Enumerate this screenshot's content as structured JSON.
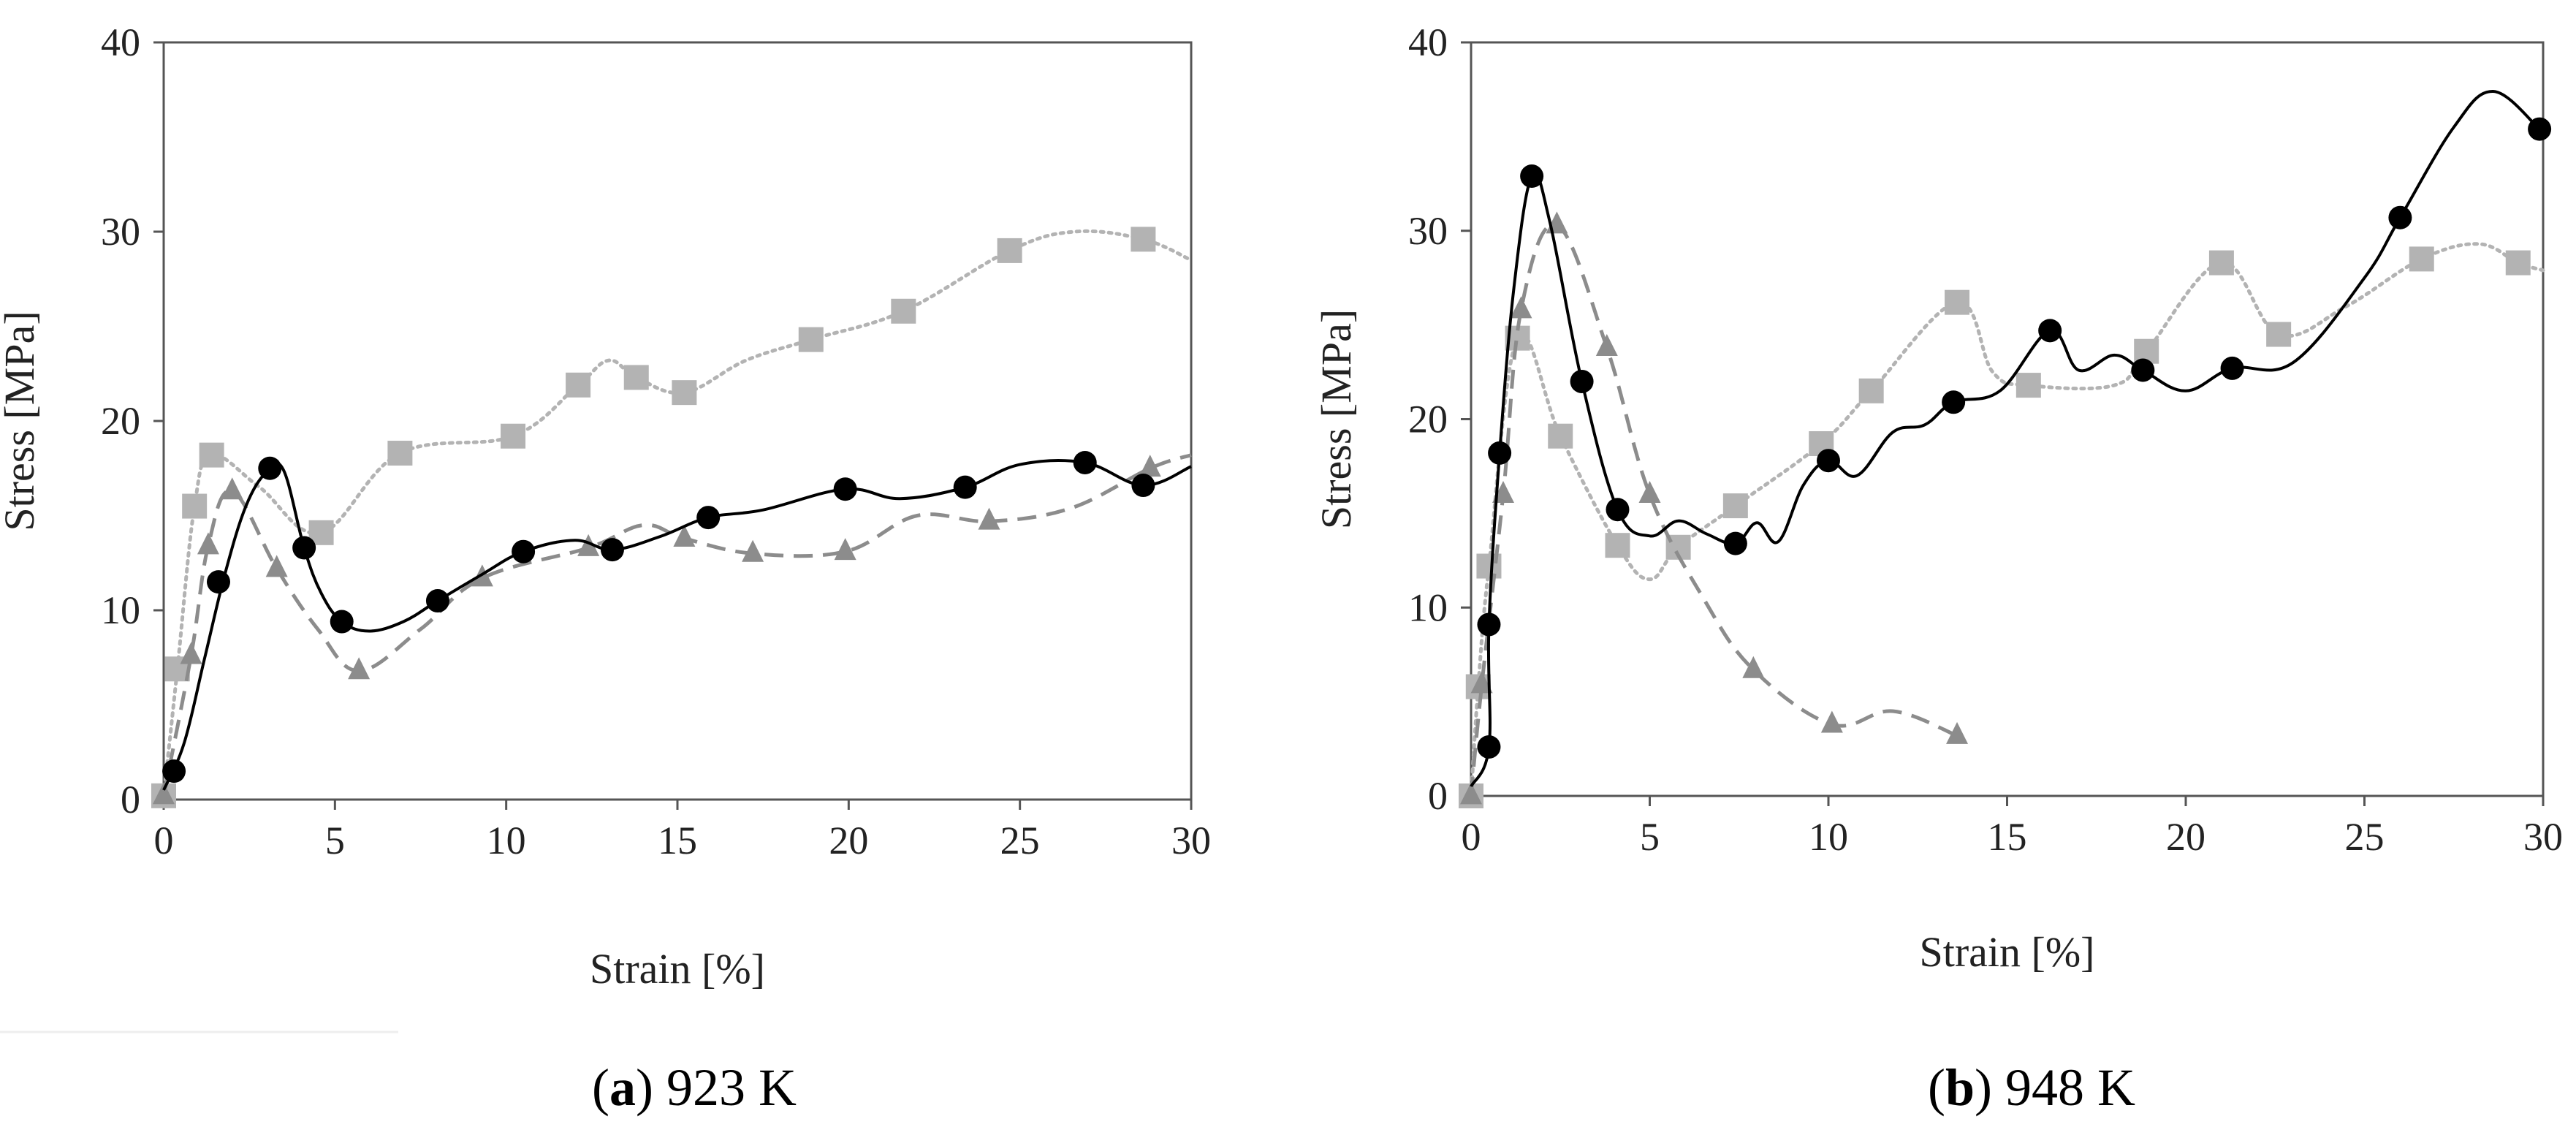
{
  "chart_data": [
    {
      "type": "line",
      "id": "a",
      "xlabel": "Strain [%]",
      "ylabel": "Stress [MPa]",
      "xlim": [
        0,
        30
      ],
      "ylim": [
        0,
        40
      ],
      "xticks": [
        0,
        5,
        10,
        15,
        20,
        25,
        30
      ],
      "yticks": [
        0,
        10,
        20,
        30,
        40
      ],
      "caption": {
        "letter": "a",
        "text": "923 K"
      },
      "series": [
        {
          "name": "circles",
          "marker": "circle",
          "line_style": "solid",
          "color": "#000000",
          "markers": [
            [
              0.3,
              1.5
            ],
            [
              1.6,
              11.5
            ],
            [
              3.1,
              17.5
            ],
            [
              4.1,
              13.3
            ],
            [
              5.2,
              9.4
            ],
            [
              8.0,
              10.5
            ],
            [
              10.5,
              13.1
            ],
            [
              13.1,
              13.2
            ],
            [
              15.9,
              14.9
            ],
            [
              19.9,
              16.4
            ],
            [
              23.4,
              16.5
            ],
            [
              26.9,
              17.8
            ],
            [
              28.6,
              16.6
            ]
          ],
          "curve": [
            [
              0.0,
              0.5
            ],
            [
              0.6,
              3.0
            ],
            [
              1.2,
              7.5
            ],
            [
              1.8,
              12.0
            ],
            [
              2.4,
              15.5
            ],
            [
              3.0,
              17.3
            ],
            [
              3.5,
              17.4
            ],
            [
              4.1,
              13.3
            ],
            [
              4.6,
              10.9
            ],
            [
              5.2,
              9.4
            ],
            [
              6.0,
              8.9
            ],
            [
              7.0,
              9.4
            ],
            [
              8.0,
              10.5
            ],
            [
              9.3,
              11.9
            ],
            [
              10.5,
              13.1
            ],
            [
              12.0,
              13.7
            ],
            [
              13.1,
              13.2
            ],
            [
              14.5,
              13.9
            ],
            [
              15.9,
              14.9
            ],
            [
              17.5,
              15.3
            ],
            [
              19.9,
              16.4
            ],
            [
              21.5,
              15.9
            ],
            [
              23.4,
              16.5
            ],
            [
              25.0,
              17.7
            ],
            [
              26.9,
              17.8
            ],
            [
              28.6,
              16.6
            ],
            [
              30.0,
              17.6
            ]
          ]
        },
        {
          "name": "squares",
          "marker": "square",
          "line_style": "dotted",
          "color": "#b3b3b3",
          "markers": [
            [
              0,
              0.2
            ],
            [
              0.4,
              6.9
            ],
            [
              0.9,
              15.5
            ],
            [
              1.4,
              18.2
            ],
            [
              4.6,
              14.1
            ],
            [
              6.9,
              18.3
            ],
            [
              10.2,
              19.2
            ],
            [
              12.1,
              21.9
            ],
            [
              13.8,
              22.3
            ],
            [
              15.2,
              21.5
            ],
            [
              18.9,
              24.3
            ],
            [
              21.6,
              25.8
            ],
            [
              24.7,
              29.0
            ],
            [
              28.6,
              29.6
            ]
          ],
          "curve": [
            [
              0,
              0.2
            ],
            [
              0.4,
              6.9
            ],
            [
              0.9,
              15.5
            ],
            [
              1.4,
              18.2
            ],
            [
              2.8,
              16.5
            ],
            [
              4.6,
              14.1
            ],
            [
              6.9,
              18.3
            ],
            [
              10.2,
              19.2
            ],
            [
              12.1,
              21.9
            ],
            [
              13.0,
              23.2
            ],
            [
              13.8,
              22.3
            ],
            [
              15.2,
              21.5
            ],
            [
              17.0,
              23.2
            ],
            [
              18.9,
              24.3
            ],
            [
              21.6,
              25.8
            ],
            [
              24.7,
              29.0
            ],
            [
              26.6,
              30.0
            ],
            [
              28.6,
              29.6
            ],
            [
              30.0,
              28.5
            ]
          ]
        },
        {
          "name": "triangles",
          "marker": "triangle",
          "line_style": "dashed",
          "color": "#8c8c8c",
          "markers": [
            [
              0,
              0.2
            ],
            [
              0.8,
              7.6
            ],
            [
              1.3,
              13.4
            ],
            [
              2.0,
              16.3
            ],
            [
              3.3,
              12.2
            ],
            [
              5.7,
              6.8
            ],
            [
              9.3,
              11.7
            ],
            [
              12.4,
              13.3
            ],
            [
              15.2,
              13.8
            ],
            [
              17.2,
              13.0
            ],
            [
              19.9,
              13.1
            ],
            [
              24.1,
              14.7
            ],
            [
              28.8,
              17.5
            ]
          ],
          "curve": [
            [
              0,
              0.2
            ],
            [
              0.8,
              7.6
            ],
            [
              1.3,
              13.4
            ],
            [
              2.0,
              16.3
            ],
            [
              3.3,
              12.2
            ],
            [
              4.5,
              9.0
            ],
            [
              5.7,
              6.8
            ],
            [
              7.5,
              9.0
            ],
            [
              9.3,
              11.7
            ],
            [
              12.4,
              13.3
            ],
            [
              14.0,
              14.5
            ],
            [
              15.2,
              13.8
            ],
            [
              17.2,
              13.0
            ],
            [
              19.9,
              13.1
            ],
            [
              22.0,
              15.0
            ],
            [
              24.1,
              14.7
            ],
            [
              26.5,
              15.4
            ],
            [
              28.8,
              17.5
            ],
            [
              30.0,
              18.2
            ]
          ]
        }
      ]
    },
    {
      "type": "line",
      "id": "b",
      "xlabel": "Strain [%]",
      "ylabel": "Stress [MPa]",
      "xlim": [
        0,
        30
      ],
      "ylim": [
        0,
        40
      ],
      "xticks": [
        0,
        5,
        10,
        15,
        20,
        25,
        30
      ],
      "yticks": [
        0,
        10,
        20,
        30,
        40
      ],
      "caption": {
        "letter": "b",
        "text": "948 K"
      },
      "series": [
        {
          "name": "circles",
          "marker": "circle",
          "line_style": "solid",
          "color": "#000000",
          "markers": [
            [
              0.5,
              2.6
            ],
            [
              0.5,
              9.1
            ],
            [
              0.8,
              18.2
            ],
            [
              1.7,
              32.9
            ],
            [
              3.1,
              22.0
            ],
            [
              4.1,
              15.2
            ],
            [
              7.4,
              13.4
            ],
            [
              10.0,
              17.8
            ],
            [
              13.5,
              20.9
            ],
            [
              16.2,
              24.7
            ],
            [
              18.8,
              22.6
            ],
            [
              21.3,
              22.7
            ],
            [
              26.0,
              30.7
            ],
            [
              29.9,
              35.4
            ]
          ],
          "curve": [
            [
              0,
              0.5
            ],
            [
              0.5,
              2.6
            ],
            [
              0.5,
              9.1
            ],
            [
              0.8,
              18.2
            ],
            [
              1.2,
              27.0
            ],
            [
              1.7,
              32.9
            ],
            [
              2.2,
              30.5
            ],
            [
              3.1,
              22.0
            ],
            [
              4.1,
              15.2
            ],
            [
              5.0,
              13.8
            ],
            [
              5.8,
              14.6
            ],
            [
              6.6,
              13.9
            ],
            [
              7.4,
              13.4
            ],
            [
              8.0,
              14.5
            ],
            [
              8.6,
              13.5
            ],
            [
              9.3,
              16.5
            ],
            [
              10.0,
              17.8
            ],
            [
              10.8,
              17.0
            ],
            [
              11.8,
              19.3
            ],
            [
              12.7,
              19.7
            ],
            [
              13.5,
              20.9
            ],
            [
              14.8,
              21.5
            ],
            [
              16.2,
              24.7
            ],
            [
              17.0,
              22.6
            ],
            [
              18.0,
              23.4
            ],
            [
              18.8,
              22.6
            ],
            [
              20.0,
              21.5
            ],
            [
              21.3,
              22.7
            ],
            [
              23.0,
              23.0
            ],
            [
              25.0,
              27.5
            ],
            [
              26.0,
              30.7
            ],
            [
              27.5,
              35.5
            ],
            [
              28.6,
              37.4
            ],
            [
              29.9,
              35.4
            ]
          ]
        },
        {
          "name": "squares",
          "marker": "square",
          "line_style": "dotted",
          "color": "#b3b3b3",
          "markers": [
            [
              0,
              0
            ],
            [
              0.2,
              5.8
            ],
            [
              0.5,
              12.2
            ],
            [
              1.3,
              24.3
            ],
            [
              2.5,
              19.1
            ],
            [
              4.1,
              13.3
            ],
            [
              5.8,
              13.2
            ],
            [
              7.4,
              15.4
            ],
            [
              9.8,
              18.7
            ],
            [
              11.2,
              21.5
            ],
            [
              13.6,
              26.2
            ],
            [
              15.6,
              21.8
            ],
            [
              18.9,
              23.6
            ],
            [
              21.0,
              28.3
            ],
            [
              22.6,
              24.5
            ],
            [
              26.6,
              28.5
            ],
            [
              29.3,
              28.3
            ]
          ],
          "curve": [
            [
              0,
              0
            ],
            [
              0.2,
              5.8
            ],
            [
              0.5,
              12.2
            ],
            [
              1.3,
              24.3
            ],
            [
              2.5,
              19.1
            ],
            [
              4.1,
              13.3
            ],
            [
              5.0,
              11.5
            ],
            [
              5.8,
              13.2
            ],
            [
              7.4,
              15.4
            ],
            [
              9.8,
              18.7
            ],
            [
              11.2,
              21.5
            ],
            [
              13.6,
              26.2
            ],
            [
              14.6,
              22.5
            ],
            [
              15.6,
              21.8
            ],
            [
              18.0,
              21.8
            ],
            [
              18.9,
              23.6
            ],
            [
              21.0,
              28.3
            ],
            [
              22.6,
              24.5
            ],
            [
              24.5,
              26.0
            ],
            [
              26.6,
              28.5
            ],
            [
              28.2,
              29.3
            ],
            [
              29.3,
              28.3
            ],
            [
              30.0,
              27.9
            ]
          ]
        },
        {
          "name": "triangles",
          "marker": "triangle",
          "line_style": "dashed",
          "color": "#8c8c8c",
          "markers": [
            [
              0,
              0
            ],
            [
              0.3,
              5.9
            ],
            [
              0.9,
              16.0
            ],
            [
              1.4,
              25.8
            ],
            [
              2.4,
              30.3
            ],
            [
              3.8,
              23.8
            ],
            [
              5.0,
              16.0
            ],
            [
              7.9,
              6.7
            ],
            [
              10.1,
              3.8
            ],
            [
              13.6,
              3.2
            ]
          ],
          "curve": [
            [
              0,
              0
            ],
            [
              0.3,
              5.9
            ],
            [
              0.9,
              16.0
            ],
            [
              1.4,
              25.8
            ],
            [
              2.4,
              30.3
            ],
            [
              3.8,
              23.8
            ],
            [
              5.0,
              16.0
            ],
            [
              6.5,
              10.5
            ],
            [
              7.9,
              6.7
            ],
            [
              10.1,
              3.8
            ],
            [
              11.8,
              4.5
            ],
            [
              13.6,
              3.2
            ]
          ]
        }
      ]
    }
  ]
}
